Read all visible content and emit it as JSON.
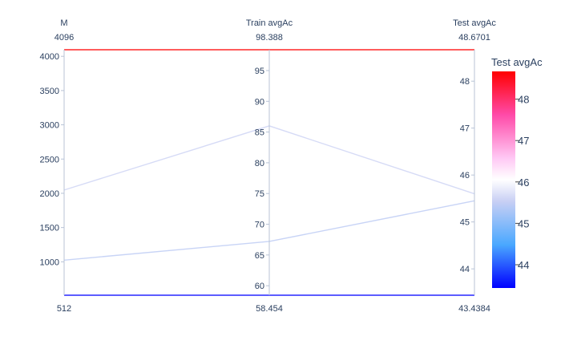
{
  "chart_data": {
    "type": "parallel_coordinates",
    "dimensions": [
      {
        "label": "M",
        "range": [
          512,
          4096
        ],
        "range_labels": {
          "top": "4096",
          "bottom": "512"
        },
        "ticks": [
          1000,
          1500,
          2000,
          2500,
          3000,
          3500,
          4000
        ]
      },
      {
        "label": "Train avgAc",
        "range": [
          58.454,
          98.388
        ],
        "range_labels": {
          "top": "98.388",
          "bottom": "58.454"
        },
        "ticks": [
          60,
          65,
          70,
          75,
          80,
          85,
          90,
          95
        ]
      },
      {
        "label": "Test avgAc",
        "range": [
          43.4384,
          48.6701
        ],
        "range_labels": {
          "top": "48.6701",
          "bottom": "43.4384"
        },
        "ticks": [
          44,
          45,
          46,
          47,
          48
        ]
      }
    ],
    "lines": [
      {
        "values": [
          4096,
          98.388,
          48.6701
        ],
        "color_value": 48.6701
      },
      {
        "values": [
          2048,
          86.0,
          45.6
        ],
        "color_value": 45.6
      },
      {
        "values": [
          1024,
          67.2,
          45.45
        ],
        "color_value": 45.45
      },
      {
        "values": [
          512,
          58.454,
          43.4384
        ],
        "color_value": 43.4384
      }
    ],
    "colorbar": {
      "title": "Test avgAc",
      "range": [
        43.4384,
        48.6701
      ],
      "ticks": [
        44,
        45,
        46,
        47,
        48
      ],
      "colorscale": [
        [
          0.0,
          "#0000ff"
        ],
        [
          0.2,
          "#4aa8ff"
        ],
        [
          0.4,
          "#c8cff4"
        ],
        [
          0.5,
          "#ffffff"
        ],
        [
          0.6,
          "#ffc8f4"
        ],
        [
          0.8,
          "#ff4aa8"
        ],
        [
          1.0,
          "#ff0000"
        ]
      ]
    }
  }
}
